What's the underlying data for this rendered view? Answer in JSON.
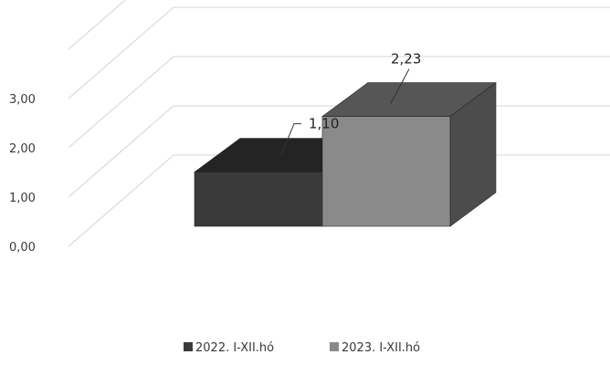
{
  "chart_data": {
    "type": "bar",
    "style": "3d-column",
    "categories": [
      ""
    ],
    "series": [
      {
        "name": "2022. I-XII.hó",
        "values": [
          1.1
        ],
        "label": "1,10",
        "color": "#3a3a3a"
      },
      {
        "name": "2023. I-XII.hó",
        "values": [
          2.23
        ],
        "label": "2,23",
        "color": "#8a8a8a"
      }
    ],
    "yticks": [
      "0,00",
      "1,00",
      "2,00",
      "3,00"
    ],
    "ylim": [
      0,
      4
    ],
    "grid": true,
    "legend_position": "bottom"
  }
}
